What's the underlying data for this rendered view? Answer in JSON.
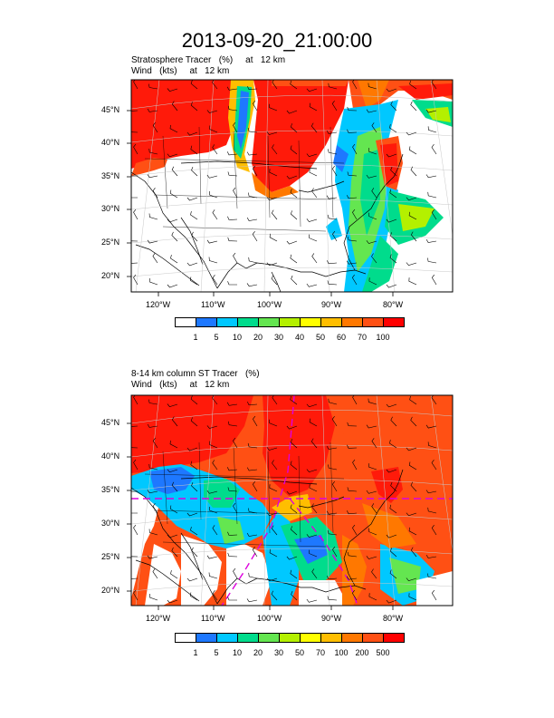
{
  "title": "2013-09-20_21:00:00",
  "panels": [
    {
      "title_line1": "Stratosphere Tracer   (%)     at   12 km",
      "title_line2": "Wind   (kts)     at   12 km",
      "lat_labels": [
        "45°N",
        "40°N",
        "35°N",
        "30°N",
        "25°N",
        "20°N"
      ],
      "lon_labels": [
        "120°W",
        "110°W",
        "100°W",
        "90°W",
        "80°W"
      ],
      "legend_labels": [
        "1",
        "5",
        "10",
        "20",
        "30",
        "40",
        "50",
        "60",
        "70",
        "100"
      ],
      "legend_colors": [
        "#ffffff",
        "#1e78ff",
        "#00c8ff",
        "#00dc8c",
        "#64e650",
        "#b4f000",
        "#ffff00",
        "#ffbe00",
        "#ff7800",
        "#ff5014",
        "#ff0000"
      ]
    },
    {
      "title_line1": "8-14 km column ST Tracer   (%)",
      "title_line2": "Wind   (kts)     at   12 km",
      "lat_labels": [
        "45°N",
        "40°N",
        "35°N",
        "30°N",
        "25°N",
        "20°N"
      ],
      "lon_labels": [
        "120°W",
        "110°W",
        "100°W",
        "90°W",
        "80°W"
      ],
      "legend_labels": [
        "1",
        "5",
        "10",
        "20",
        "30",
        "50",
        "70",
        "100",
        "200",
        "500"
      ],
      "legend_colors": [
        "#ffffff",
        "#1e78ff",
        "#00c8ff",
        "#00dc8c",
        "#64e650",
        "#b4f000",
        "#ffff00",
        "#ffbe00",
        "#ff7800",
        "#ff5014",
        "#ff0000"
      ]
    }
  ]
}
